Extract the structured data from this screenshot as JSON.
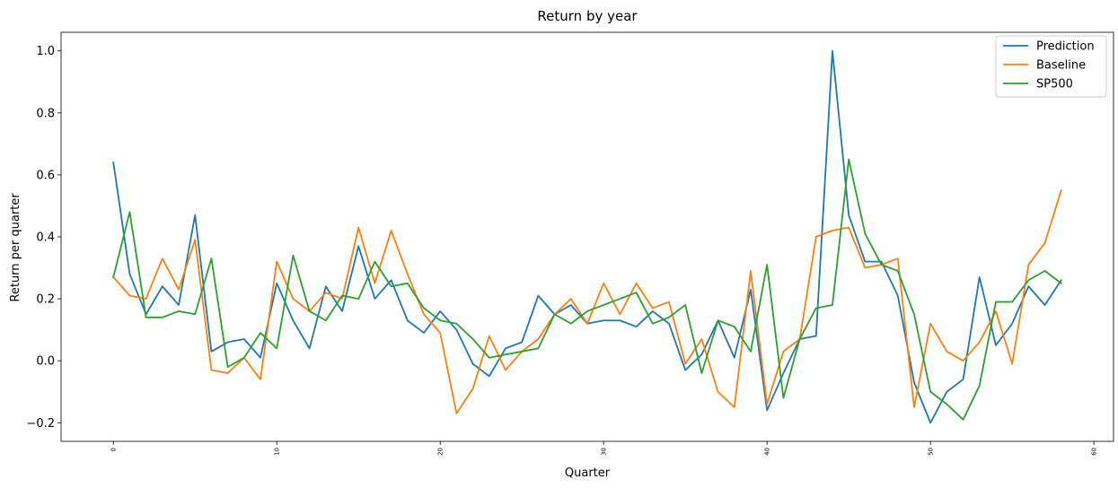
{
  "chart_data": {
    "type": "line",
    "title": "Return by year",
    "xlabel": "Quarter",
    "ylabel": "Return per quarter",
    "xlim": [
      -3.2,
      61.2
    ],
    "ylim": [
      -0.26,
      1.06
    ],
    "x_ticks": [
      0,
      10,
      20,
      30,
      40,
      50,
      60
    ],
    "y_ticks": [
      -0.2,
      0.0,
      0.2,
      0.4,
      0.6,
      0.8,
      1.0
    ],
    "y_tick_labels": [
      "−0.2",
      "0.0",
      "0.2",
      "0.4",
      "0.6",
      "0.8",
      "1.0"
    ],
    "grid": false,
    "legend_position": "top-right",
    "x": [
      0,
      1,
      2,
      3,
      4,
      5,
      6,
      7,
      8,
      9,
      10,
      11,
      12,
      13,
      14,
      15,
      16,
      17,
      18,
      19,
      20,
      21,
      22,
      23,
      24,
      25,
      26,
      27,
      28,
      29,
      30,
      31,
      32,
      33,
      34,
      35,
      36,
      37,
      38,
      39,
      40,
      41,
      42,
      43,
      44,
      45,
      46,
      47,
      48,
      49,
      50,
      51,
      52,
      53,
      54,
      55,
      56,
      57,
      58
    ],
    "series": [
      {
        "name": "Prediction",
        "color": "#1f77b4",
        "values": [
          0.64,
          0.28,
          0.15,
          0.24,
          0.18,
          0.47,
          0.03,
          0.06,
          0.07,
          0.01,
          0.25,
          0.13,
          0.04,
          0.24,
          0.16,
          0.37,
          0.2,
          0.26,
          0.13,
          0.09,
          0.16,
          0.1,
          -0.01,
          -0.05,
          0.04,
          0.06,
          0.21,
          0.15,
          0.18,
          0.12,
          0.13,
          0.13,
          0.11,
          0.16,
          0.12,
          -0.03,
          0.02,
          0.13,
          0.01,
          0.23,
          -0.16,
          -0.04,
          0.07,
          0.08,
          1.0,
          0.47,
          0.32,
          0.32,
          0.21,
          -0.07,
          -0.2,
          -0.1,
          -0.06,
          0.27,
          0.05,
          0.12,
          0.24,
          0.18,
          0.26
        ]
      },
      {
        "name": "Baseline",
        "color": "#ff7f0e",
        "values": [
          0.27,
          0.21,
          0.2,
          0.33,
          0.23,
          0.39,
          -0.03,
          -0.04,
          0.01,
          -0.06,
          0.32,
          0.2,
          0.16,
          0.22,
          0.2,
          0.43,
          0.25,
          0.42,
          0.28,
          0.15,
          0.09,
          -0.17,
          -0.09,
          0.08,
          -0.03,
          0.03,
          0.07,
          0.15,
          0.2,
          0.12,
          0.25,
          0.15,
          0.25,
          0.17,
          0.19,
          -0.01,
          0.07,
          -0.1,
          -0.15,
          0.29,
          -0.14,
          0.03,
          0.07,
          0.4,
          0.42,
          0.43,
          0.3,
          0.31,
          0.33,
          -0.15,
          0.12,
          0.03,
          0.0,
          0.06,
          0.16,
          -0.01,
          0.31,
          0.38,
          0.55
        ]
      },
      {
        "name": "SP500",
        "color": "#2ca02c",
        "values": [
          0.27,
          0.48,
          0.14,
          0.14,
          0.16,
          0.15,
          0.33,
          -0.02,
          0.01,
          0.09,
          0.04,
          0.34,
          0.16,
          0.13,
          0.21,
          0.2,
          0.32,
          0.24,
          0.25,
          0.17,
          0.13,
          0.12,
          0.07,
          0.01,
          0.02,
          0.03,
          0.04,
          0.15,
          0.12,
          0.16,
          0.18,
          0.2,
          0.22,
          0.12,
          0.14,
          0.18,
          -0.04,
          0.13,
          0.11,
          0.03,
          0.31,
          -0.12,
          0.07,
          0.17,
          0.18,
          0.65,
          0.41,
          0.31,
          0.29,
          0.15,
          -0.1,
          -0.14,
          -0.19,
          -0.08,
          0.19,
          0.19,
          0.26,
          0.29,
          0.25
        ]
      }
    ]
  }
}
